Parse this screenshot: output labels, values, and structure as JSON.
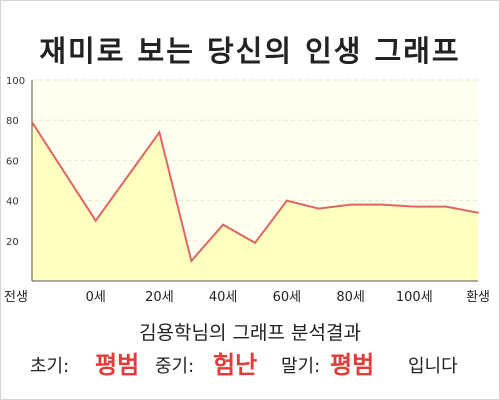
{
  "title": "재미로 보는 당신의 인생 그래프",
  "subtitle": "김용학님의 그래프 분석결과",
  "summary": {
    "early_label": "초기:",
    "early_value": "평범",
    "mid_label": "중기:",
    "mid_value": "험난",
    "late_label": "말기:",
    "late_value": "평범",
    "ending": "입니다"
  },
  "colors": {
    "line": "#e06666",
    "fill": "#ffffc0",
    "plot_bg": "#fffff0",
    "highlight": "#e53a3a"
  },
  "chart_data": {
    "type": "area",
    "title": "재미로 보는 당신의 인생 그래프",
    "xlabel": "",
    "ylabel": "",
    "ylim": [
      0,
      100
    ],
    "y_ticks": [
      20,
      40,
      60,
      80,
      100
    ],
    "x_tick_labels": [
      "전생",
      "0세",
      "20세",
      "40세",
      "60세",
      "80세",
      "100세",
      "환생"
    ],
    "grid": true,
    "series": [
      {
        "x": [
          0,
          1,
          2,
          2.5,
          3,
          3.5,
          4,
          4.5,
          5,
          5.5,
          6,
          6.5,
          7
        ],
        "values": [
          79,
          30,
          74,
          10,
          28,
          19,
          40,
          36,
          38,
          38,
          37,
          37,
          34
        ]
      }
    ]
  }
}
